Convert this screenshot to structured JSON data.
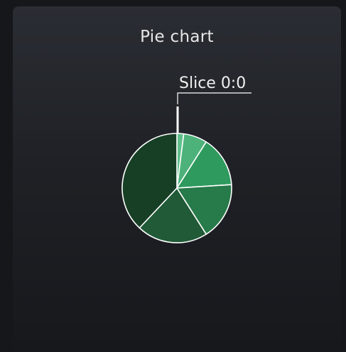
{
  "chart_data": {
    "type": "pie",
    "title": "Pie chart",
    "slices": [
      {
        "label": "Slice 0:0",
        "value": 2,
        "color": "#5fbf8a"
      },
      {
        "label": "",
        "value": 7,
        "color": "#4db27a"
      },
      {
        "label": "",
        "value": 15,
        "color": "#2f9a5e"
      },
      {
        "label": "",
        "value": 17,
        "color": "#277a49"
      },
      {
        "label": "",
        "value": 21,
        "color": "#205a37"
      },
      {
        "label": "",
        "value": 38,
        "color": "#173f26"
      }
    ],
    "callout": "Slice 0:0",
    "slice_border_color": "#ffffff",
    "start_angle_deg": 0,
    "direction": "clockwise"
  }
}
